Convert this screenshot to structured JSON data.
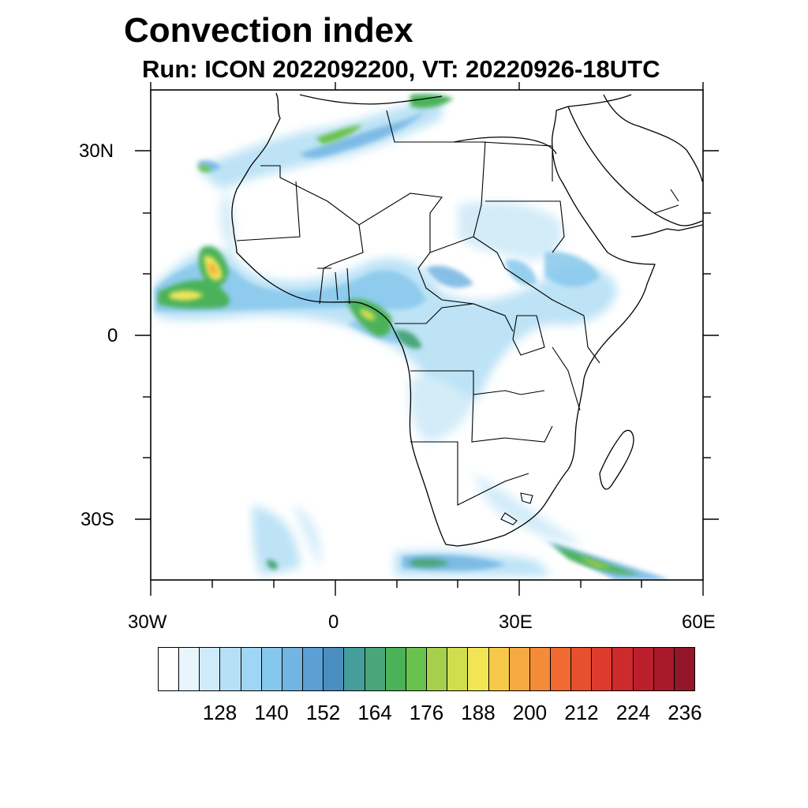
{
  "title": "Convection index",
  "subtitle": "Run: ICON 2022092200,  VT: 20220926-18UTC",
  "axes": {
    "lat_labels": [
      "30N",
      "0",
      "30S"
    ],
    "lon_labels": [
      "30W",
      "0",
      "30E",
      "60E"
    ]
  },
  "colorbar": {
    "colors": [
      "#ffffff",
      "#e8f5fc",
      "#cfeaf8",
      "#b6e0f5",
      "#9ed6f3",
      "#86c7ec",
      "#72b4e2",
      "#5c9fd4",
      "#4a8fbf",
      "#469e9b",
      "#4aa67a",
      "#4bb25a",
      "#6ac24e",
      "#a6cf4c",
      "#cfdd4e",
      "#f1e556",
      "#f7c94b",
      "#f6a941",
      "#f48b39",
      "#f06a31",
      "#e8502d",
      "#dd3b2d",
      "#cc2a2c",
      "#bb1f2b",
      "#a8192a",
      "#931728"
    ],
    "labels": [
      "128",
      "140",
      "152",
      "164",
      "176",
      "188",
      "200",
      "212",
      "224",
      "236"
    ]
  },
  "map_data": {
    "features": [
      "convection-field",
      "coastlines",
      "country-borders"
    ],
    "projection": "cylindrical equidistant",
    "lon_range": [
      -30,
      60
    ],
    "lat_range": [
      -40,
      40
    ]
  }
}
